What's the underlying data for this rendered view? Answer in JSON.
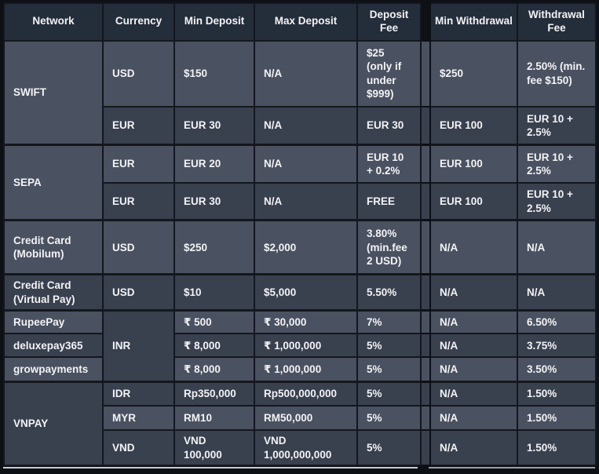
{
  "header": {
    "network": "Network",
    "currency": "Currency",
    "min_deposit": "Min Deposit",
    "max_deposit": "Max Deposit",
    "deposit_fee": "Deposit Fee",
    "min_withdrawal": "Min Withdrawal",
    "withdrawal_fee": "Withdrawal Fee"
  },
  "rows": [
    {
      "network": "SWIFT",
      "currency": "USD",
      "min_deposit": "$150",
      "max_deposit": "N/A",
      "deposit_fee": "$25 (only if under $999)",
      "min_withdrawal": "$250",
      "withdrawal_fee": "2.50% (min. fee $150)"
    },
    {
      "currency": "EUR",
      "min_deposit": "EUR 30",
      "max_deposit": "N/A",
      "deposit_fee": "EUR 30",
      "min_withdrawal": "EUR 100",
      "withdrawal_fee": "EUR 10 + 2.5%"
    },
    {
      "network": "SEPA",
      "currency": "EUR",
      "min_deposit": "EUR 20",
      "max_deposit": "N/A",
      "deposit_fee": "EUR 10 + 0.2%",
      "min_withdrawal": "EUR 100",
      "withdrawal_fee": "EUR 10 + 2.5%"
    },
    {
      "currency": "EUR",
      "min_deposit": "EUR 30",
      "max_deposit": "N/A",
      "deposit_fee": "FREE",
      "min_withdrawal": "EUR 100",
      "withdrawal_fee": "EUR 10 + 2.5%"
    },
    {
      "network": "Credit Card (Mobilum)",
      "currency": "USD",
      "min_deposit": "$250",
      "max_deposit": "$2,000",
      "deposit_fee": "3.80% (min.fee 2 USD)",
      "min_withdrawal": "N/A",
      "withdrawal_fee": "N/A"
    },
    {
      "network": "Credit Card (Virtual Pay)",
      "currency": "USD",
      "min_deposit": "$10",
      "max_deposit": "$5,000",
      "deposit_fee": "5.50%",
      "min_withdrawal": "N/A",
      "withdrawal_fee": "N/A"
    },
    {
      "network": "RupeePay",
      "currency": "INR",
      "min_deposit": "₹ 500",
      "max_deposit": "₹ 30,000",
      "deposit_fee": "7%",
      "min_withdrawal": "N/A",
      "withdrawal_fee": "6.50%"
    },
    {
      "network": "deluxepay365",
      "min_deposit": "₹ 8,000",
      "max_deposit": "₹ 1,000,000",
      "deposit_fee": "5%",
      "min_withdrawal": "N/A",
      "withdrawal_fee": "3.75%"
    },
    {
      "network": "growpayments",
      "min_deposit": "₹ 8,000",
      "max_deposit": "₹ 1,000,000",
      "deposit_fee": "5%",
      "min_withdrawal": "N/A",
      "withdrawal_fee": "3.50%"
    },
    {
      "network": "VNPAY",
      "currency": "IDR",
      "min_deposit": "Rp350,000",
      "max_deposit": "Rp500,000,000",
      "deposit_fee": "5%",
      "min_withdrawal": "N/A",
      "withdrawal_fee": "1.50%"
    },
    {
      "currency": "MYR",
      "min_deposit": "RM10",
      "max_deposit": "RM50,000",
      "deposit_fee": "5%",
      "min_withdrawal": "N/A",
      "withdrawal_fee": "1.50%"
    },
    {
      "currency": "VND",
      "min_deposit": "VND 100,000",
      "max_deposit": "VND 1,000,000,000",
      "deposit_fee": "5%",
      "min_withdrawal": "N/A",
      "withdrawal_fee": "1.50%"
    }
  ],
  "colors": {
    "background": "#0d1014",
    "header_bg": "#242d3a",
    "row_light": "#4a5160",
    "row_dark": "#39404e",
    "grid_line": "#14171d",
    "text": "#f2f3f5",
    "bottom_line": "#c9cdd3"
  }
}
